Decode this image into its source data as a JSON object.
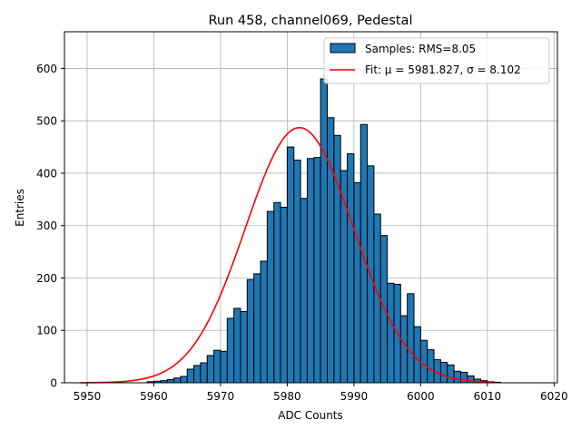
{
  "chart_data": {
    "type": "bar",
    "title": "Run 458, channel069, Pedestal",
    "xlabel": "ADC Counts",
    "ylabel": "Entries",
    "xlim": [
      5946.6,
      6020.5
    ],
    "ylim": [
      0,
      670
    ],
    "xticks": [
      5950,
      5960,
      5970,
      5980,
      5990,
      6000,
      6010,
      6020
    ],
    "yticks": [
      0,
      100,
      200,
      300,
      400,
      500,
      600
    ],
    "grid": true,
    "legend_position": "top-right",
    "bin_width": 1,
    "bin_start": 5959,
    "series": [
      {
        "name": "Samples: RMS=8.05",
        "kind": "histogram",
        "color": "#1f77b4",
        "edge_color": "#000000",
        "values": [
          2,
          3,
          4,
          6,
          9,
          12,
          26,
          33,
          38,
          52,
          62,
          60,
          123,
          142,
          136,
          197,
          208,
          232,
          327,
          344,
          335,
          450,
          425,
          352,
          428,
          430,
          580,
          506,
          472,
          405,
          437,
          382,
          493,
          414,
          322,
          281,
          190,
          188,
          128,
          170,
          107,
          81,
          63,
          44,
          39,
          34,
          22,
          20,
          13,
          7,
          4,
          2,
          1
        ]
      },
      {
        "name": "Fit: μ = 5981.827, σ = 8.102",
        "kind": "gaussian-fit",
        "color": "#ff0000",
        "mu": 5981.827,
        "sigma": 8.102,
        "amplitude": 487,
        "x_range": [
          5949,
          6011
        ]
      }
    ]
  }
}
